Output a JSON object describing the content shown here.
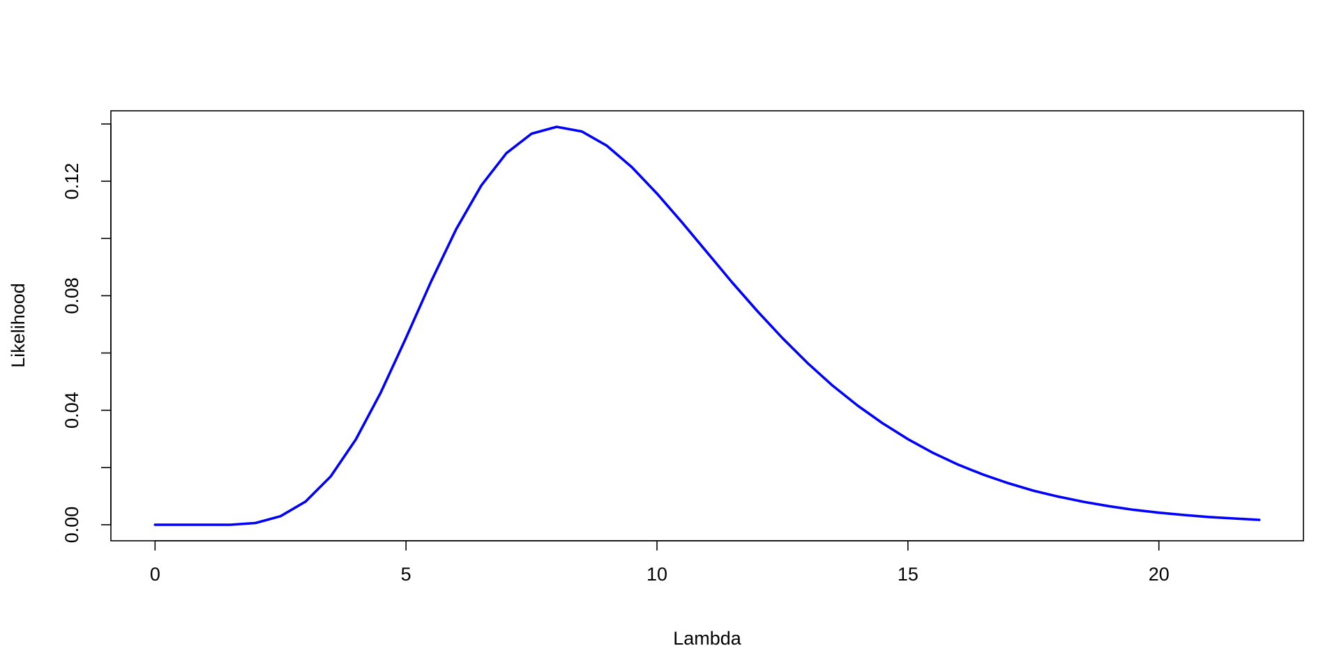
{
  "chart_data": {
    "type": "line",
    "title": "",
    "xlabel": "Lambda",
    "ylabel": "Likelihood",
    "xlim": [
      -0.88,
      22.88
    ],
    "ylim": [
      -0.0056,
      0.1446
    ],
    "x_ticks": [
      0,
      5,
      10,
      15,
      20
    ],
    "x_tick_labels": [
      "0",
      "5",
      "10",
      "15",
      "20"
    ],
    "y_ticks": [
      0.0,
      0.02,
      0.04,
      0.06,
      0.08,
      0.1,
      0.12,
      0.14
    ],
    "y_tick_labels": [
      "0.00",
      "",
      "0.04",
      "",
      "0.08",
      "",
      "0.12",
      ""
    ],
    "grid": false,
    "series": [
      {
        "color": "#0000FF",
        "x": [
          0,
          0.5,
          1,
          1.5,
          2,
          2.5,
          3,
          3.5,
          4,
          4.5,
          5,
          5.5,
          6,
          6.5,
          7,
          7.5,
          8,
          8.5,
          9,
          9.5,
          10,
          10.5,
          11,
          11.5,
          12,
          12.5,
          13,
          13.5,
          14,
          14.5,
          15,
          15.5,
          16,
          16.5,
          17,
          17.5,
          18,
          18.5,
          19,
          19.5,
          20,
          20.5,
          21,
          21.5,
          22
        ],
        "y": [
          0.0,
          0.0,
          0.0,
          0.0,
          0.0006,
          0.003,
          0.0081,
          0.0169,
          0.0298,
          0.0463,
          0.0653,
          0.085,
          0.1033,
          0.1185,
          0.1298,
          0.1366,
          0.139,
          0.1374,
          0.1324,
          0.1249,
          0.1157,
          0.1056,
          0.0951,
          0.0846,
          0.0746,
          0.0652,
          0.0565,
          0.0486,
          0.0416,
          0.0354,
          0.0299,
          0.0251,
          0.021,
          0.0175,
          0.0145,
          0.0119,
          0.0098,
          0.008,
          0.0065,
          0.0052,
          0.0042,
          0.0034,
          0.0027,
          0.0022,
          0.0017
        ]
      }
    ]
  }
}
